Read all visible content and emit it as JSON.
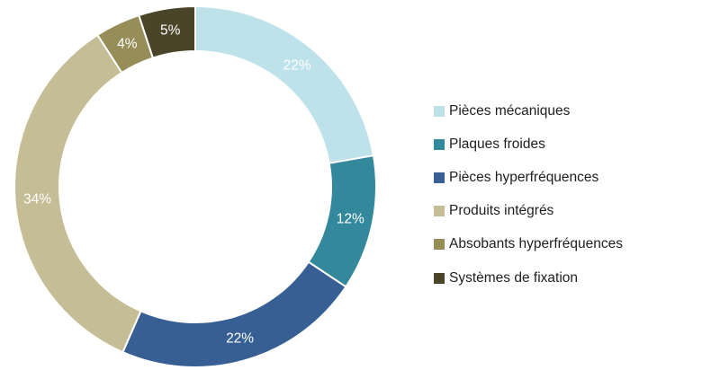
{
  "chart_data": {
    "type": "pie",
    "donut": true,
    "unit": "%",
    "legend_position": "right",
    "slices": [
      {
        "name": "Pièces mécaniques",
        "value": 22,
        "label": "22%",
        "color": "#bde2ea"
      },
      {
        "name": "Plaques froides",
        "value": 12,
        "label": "12%",
        "color": "#33889b"
      },
      {
        "name": "Pièces hyperfréquences",
        "value": 22,
        "label": "22%",
        "color": "#375f93"
      },
      {
        "name": "Produits intégrés",
        "value": 34,
        "label": "34%",
        "color": "#c5bd95"
      },
      {
        "name": "Absobants hyperfréquences",
        "value": 4,
        "label": "4%",
        "color": "#968d59"
      },
      {
        "name": "Systèmes de fixation",
        "value": 5,
        "label": "5%",
        "color": "#4a4529"
      }
    ]
  }
}
